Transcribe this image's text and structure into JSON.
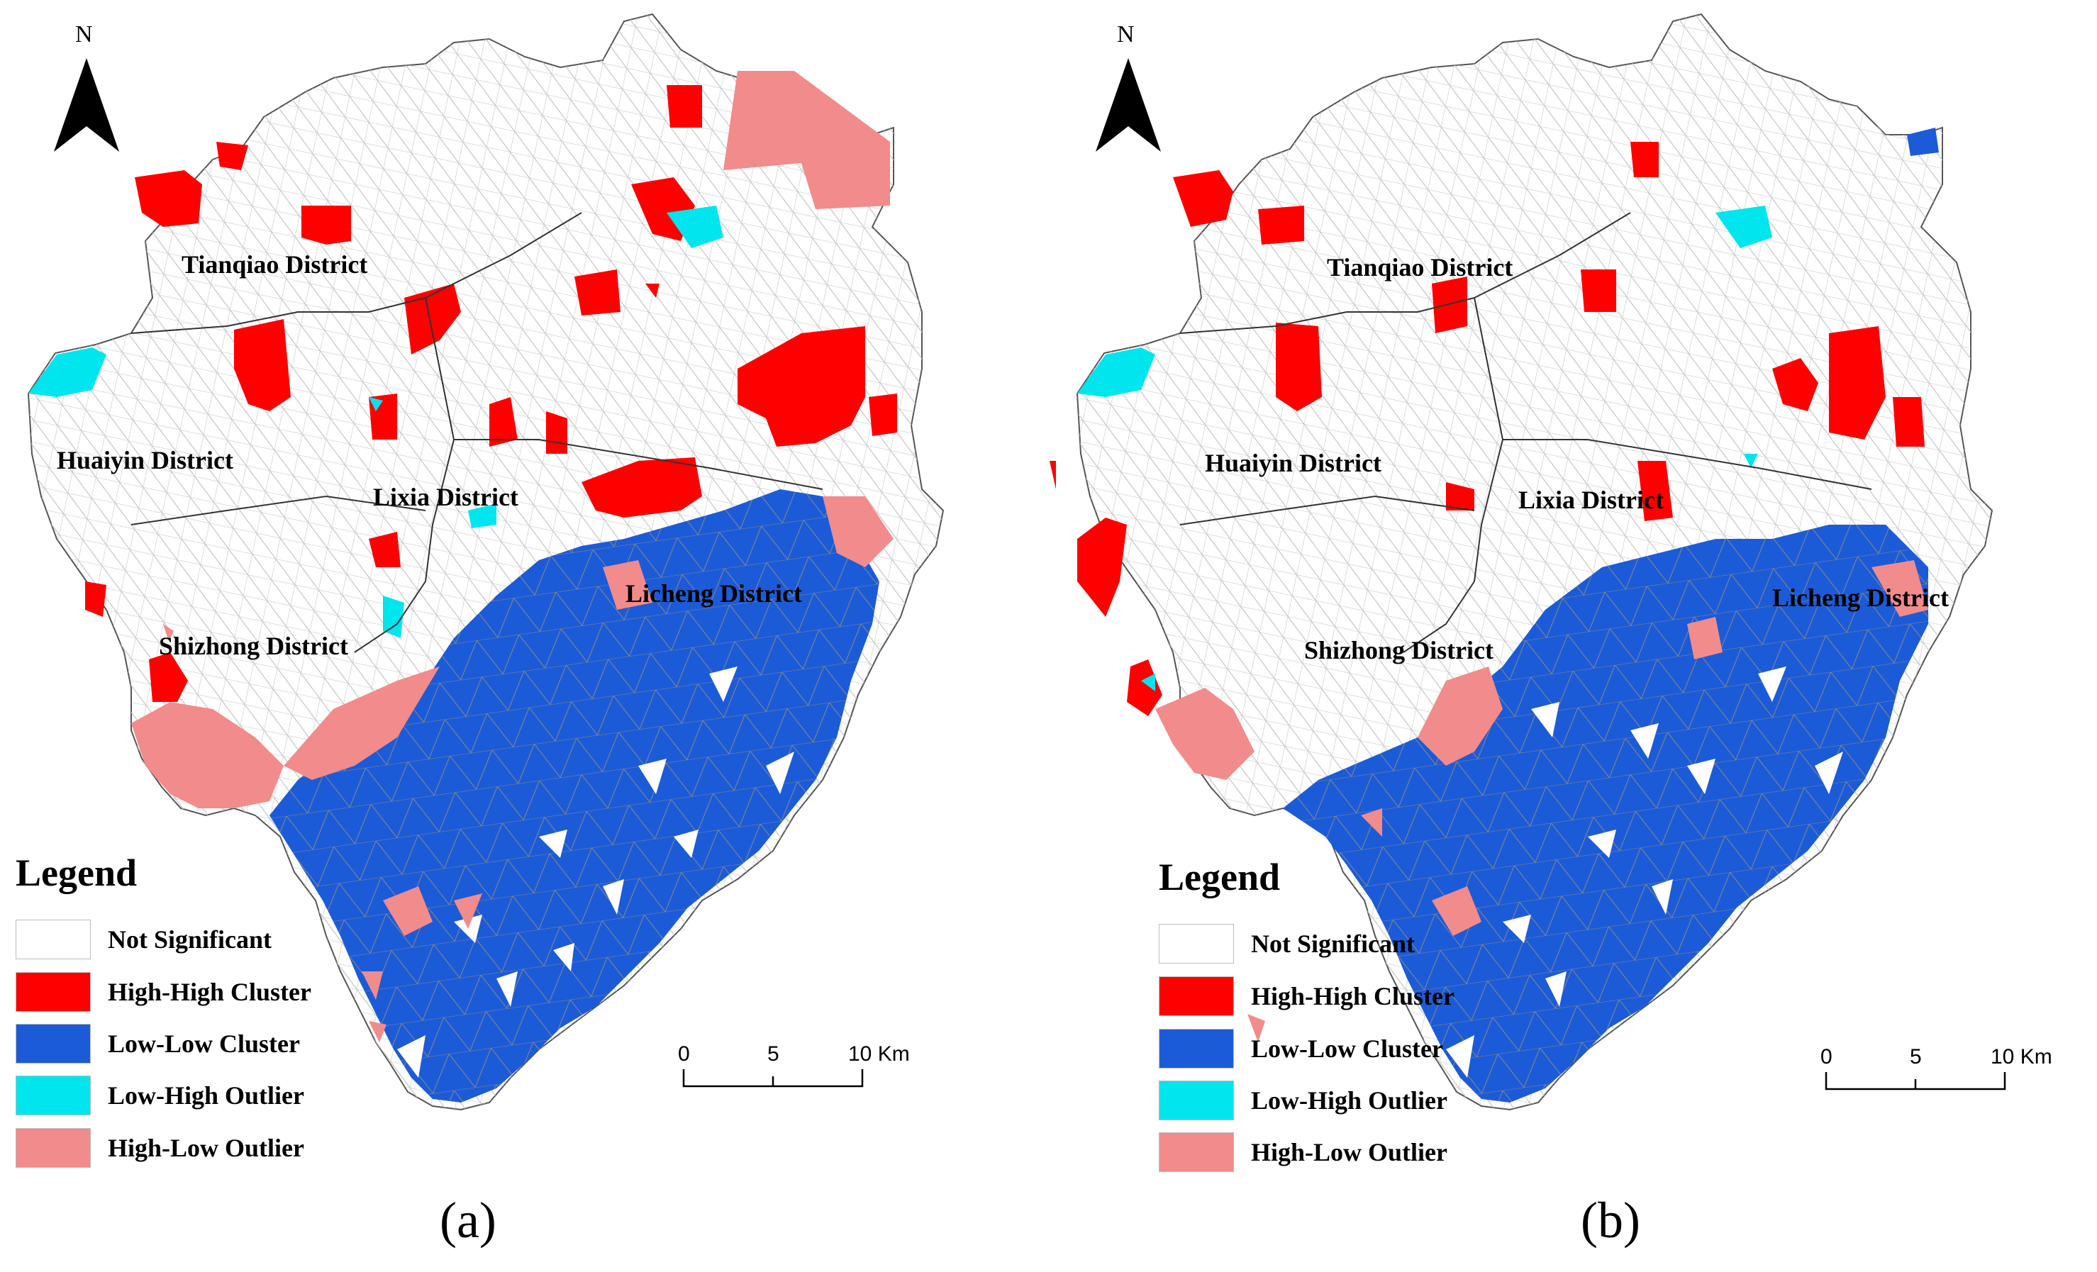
{
  "north": "N",
  "legend": {
    "title": "Legend",
    "items": [
      {
        "label": "Not Significant",
        "color": "#ffffff"
      },
      {
        "label": "High-High Cluster",
        "color": "#ff0000"
      },
      {
        "label": "Low-Low Cluster",
        "color": "#1c5bd8"
      },
      {
        "label": "Low-High Outlier",
        "color": "#00e5ee"
      },
      {
        "label": "High-Low Outlier",
        "color": "#f28b8b"
      }
    ]
  },
  "scale": {
    "ticks": [
      "0",
      "5",
      "10 Km"
    ]
  },
  "districts": {
    "tianqiao": "Tianqiao District",
    "huaiyin": "Huaiyin District",
    "lixia": "Lixia District",
    "licheng": "Licheng District",
    "shizhong": "Shizhong District"
  },
  "panels": [
    {
      "caption": "(a)"
    },
    {
      "caption": "(b)"
    }
  ]
}
